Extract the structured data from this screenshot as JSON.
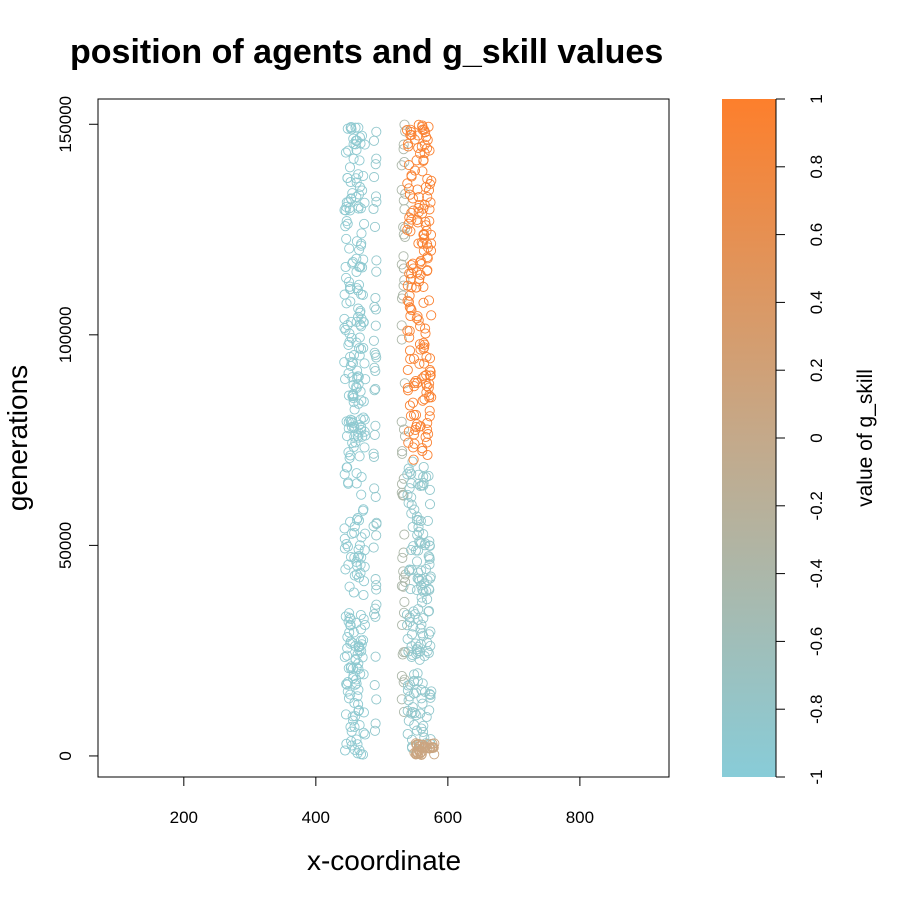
{
  "chart_data": {
    "type": "scatter",
    "title": "position of agents and g_skill values",
    "xlabel": "x-coordinate",
    "ylabel": "generations",
    "xlim": [
      70,
      935
    ],
    "ylim": [
      -5000,
      156000
    ],
    "x_ticks": [
      200,
      400,
      600,
      800
    ],
    "y_ticks": [
      0,
      50000,
      100000,
      150000
    ],
    "x_tick_labels": [
      "200",
      "400",
      "600",
      "800"
    ],
    "y_tick_labels": [
      "0",
      "50000",
      "100000",
      "150000"
    ],
    "grid": false,
    "legend": "none",
    "marker": "open-circle",
    "color_scale": {
      "label": "value of g_skill",
      "range": [
        -1,
        1
      ],
      "low_color": "#88ccd8",
      "mid_color": "#c4a98a",
      "high_color": "#fd7f2c",
      "ticks": [
        1,
        0.8,
        0.6,
        0.4,
        0.2,
        0,
        -0.2,
        -0.4,
        -0.6,
        -0.8,
        -1
      ],
      "tick_labels": [
        "1",
        "0.8",
        "0.6",
        "0.4",
        "0.2",
        "0",
        "-0.2",
        "-0.4",
        "-0.6",
        "-0.8",
        "-1"
      ]
    },
    "clusters": [
      {
        "x_range": [
          443,
          475
        ],
        "y_range": [
          0,
          150000
        ],
        "g_skill": -0.9
      },
      {
        "x_range": [
          487,
          492
        ],
        "y_range": [
          1000,
          150000
        ],
        "g_skill": -0.85
      },
      {
        "x_range": [
          530,
          536
        ],
        "y_range": [
          1000,
          150000
        ],
        "g_skill": -0.4
      },
      {
        "x_range": [
          538,
          575
        ],
        "y_range": [
          0,
          70000
        ],
        "g_skill": -0.85
      },
      {
        "x_range": [
          538,
          575
        ],
        "y_range": [
          70000,
          150000
        ],
        "g_skill": 0.95
      },
      {
        "x_range": [
          548,
          580
        ],
        "y_range": [
          0,
          3000
        ],
        "g_skill": 0.1
      }
    ]
  }
}
